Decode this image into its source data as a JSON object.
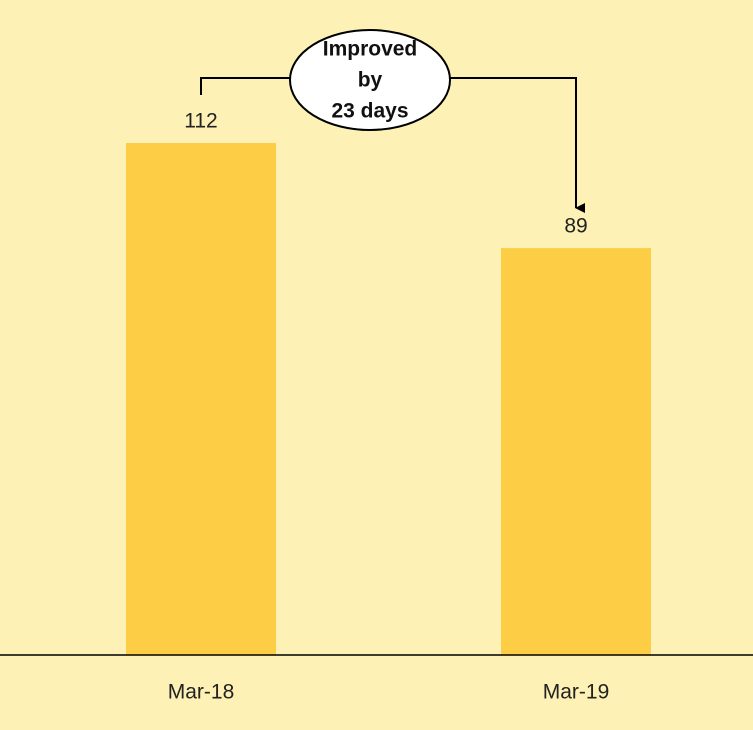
{
  "chart_data": {
    "type": "bar",
    "categories": [
      "Mar-18",
      "Mar-19"
    ],
    "values": [
      112,
      89
    ],
    "color": "#fccd45",
    "annotation": [
      "Improved",
      "by",
      "23 days"
    ]
  }
}
